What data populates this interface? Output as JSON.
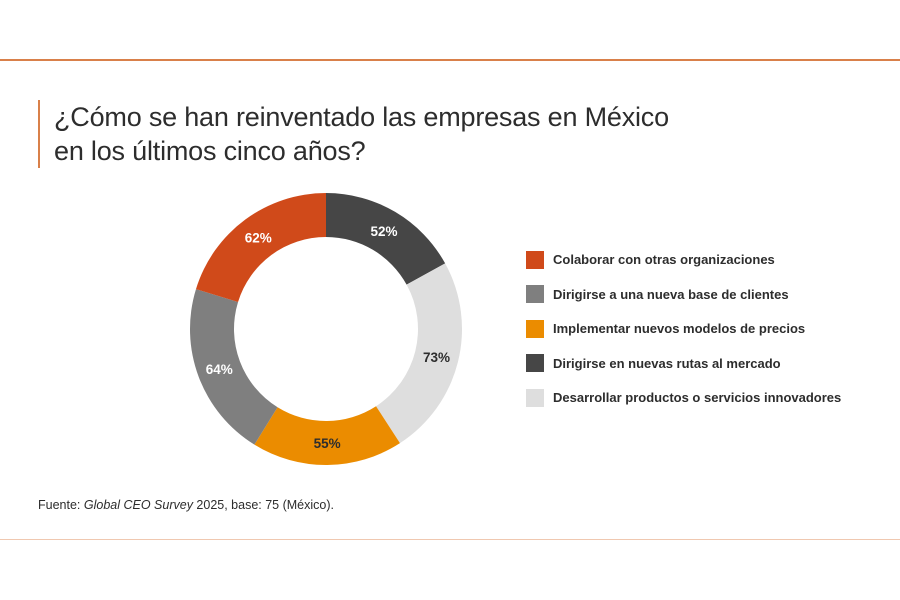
{
  "title": {
    "line1": "¿Cómo se han reinventado las empresas en México",
    "line2": "en los últimos cinco años?"
  },
  "chart_data": {
    "type": "pie",
    "subtype": "donut",
    "title": "¿Cómo se han reinventado las empresas en México en los últimos cinco años?",
    "unit": "%",
    "legend_position": "right",
    "series": [
      {
        "name": "Colaborar con otras organizaciones",
        "value": 62,
        "label": "62%",
        "color": "#d04a1a",
        "label_color": "#ffffff"
      },
      {
        "name": "Dirigirse a una nueva base de clientes",
        "value": 64,
        "label": "64%",
        "color": "#7f7f7f",
        "label_color": "#ffffff"
      },
      {
        "name": "Implementar nuevos modelos de precios",
        "value": 55,
        "label": "55%",
        "color": "#eb8c00",
        "label_color": "#2d2d2d"
      },
      {
        "name": "Dirigirse en nuevas rutas al mercado",
        "value": 52,
        "label": "52%",
        "color": "#464646",
        "label_color": "#ffffff"
      },
      {
        "name": "Desarrollar productos o servicios innovadores",
        "value": 73,
        "label": "73%",
        "color": "#dedede",
        "label_color": "#2d2d2d"
      }
    ],
    "ring_order": [
      3,
      4,
      2,
      1,
      0
    ]
  },
  "source": {
    "prefix": "Fuente: ",
    "survey": "Global CEO Survey",
    "suffix": " 2025, base: 75 (México)."
  }
}
